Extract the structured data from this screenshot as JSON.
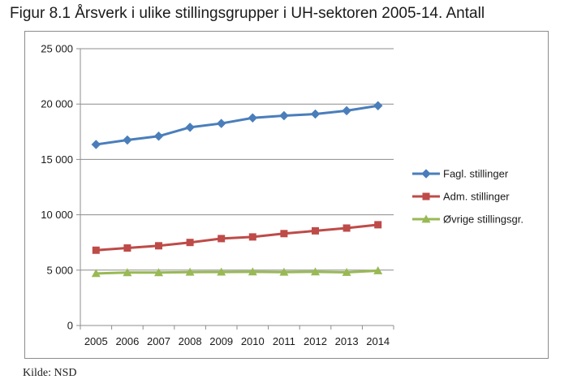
{
  "title": "Figur 8.1 Årsverk i ulike stillingsgrupper i UH-sektoren 2005-14. Antall",
  "source": "Kilde: NSD",
  "chart_data": {
    "type": "line",
    "title": "Figur 8.1 Årsverk i ulike stillingsgrupper i UH-sektoren 2005-14. Antall",
    "xlabel": "",
    "ylabel": "",
    "ylim": [
      0,
      25000
    ],
    "yticks": [
      0,
      5000,
      10000,
      15000,
      20000,
      25000
    ],
    "ytick_labels": [
      "0",
      "5 000",
      "10 000",
      "15 000",
      "20 000",
      "25 000"
    ],
    "x": [
      "2005",
      "2006",
      "2007",
      "2008",
      "2009",
      "2010",
      "2011",
      "2012",
      "2013",
      "2014"
    ],
    "grid": true,
    "legend_position": "right",
    "series": [
      {
        "name": "Fagl. stillinger",
        "color": "#4a7ebb",
        "marker": "diamond",
        "values": [
          16350,
          16750,
          17100,
          17900,
          18250,
          18750,
          18950,
          19100,
          19400,
          19850
        ]
      },
      {
        "name": "Adm. stillinger",
        "color": "#be4b48",
        "marker": "square",
        "values": [
          6800,
          7000,
          7200,
          7500,
          7850,
          8000,
          8300,
          8550,
          8800,
          9100
        ]
      },
      {
        "name": "Øvrige stillingsgr.",
        "color": "#98b954",
        "marker": "triangle",
        "values": [
          4700,
          4780,
          4780,
          4820,
          4830,
          4850,
          4820,
          4850,
          4800,
          4950
        ]
      }
    ]
  }
}
